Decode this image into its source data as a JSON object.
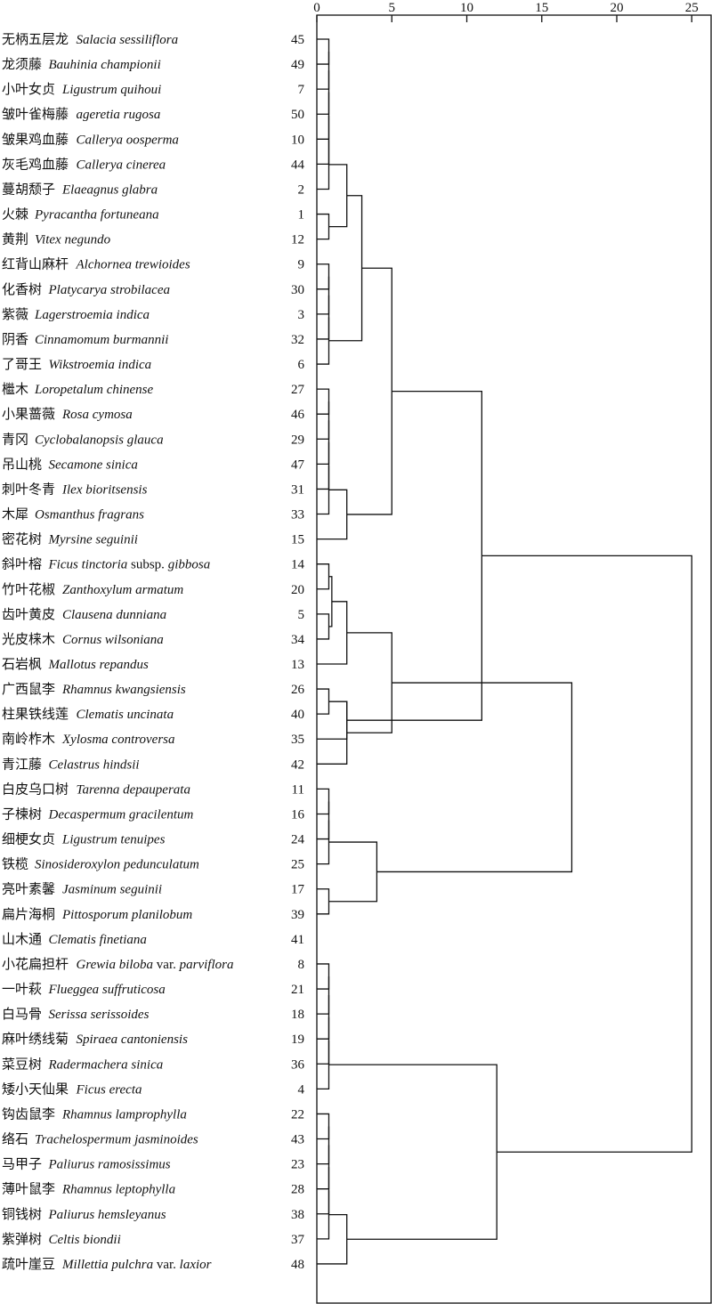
{
  "axis": {
    "ticks": [
      0,
      5,
      10,
      15,
      20,
      25
    ],
    "range": [
      0,
      26.5
    ]
  },
  "leaves": [
    {
      "zh": "无柄五层龙",
      "sci": [
        {
          "t": "Salacia sessiliflora",
          "i": true
        }
      ],
      "id": "45"
    },
    {
      "zh": "龙须藤",
      "sci": [
        {
          "t": "Bauhinia championii",
          "i": true
        }
      ],
      "id": "49"
    },
    {
      "zh": "小叶女贞",
      "sci": [
        {
          "t": "Ligustrum quihoui",
          "i": true
        }
      ],
      "id": "7"
    },
    {
      "zh": "皱叶雀梅藤",
      "sci": [
        {
          "t": "ageretia rugosa",
          "i": true
        }
      ],
      "id": "50"
    },
    {
      "zh": "皱果鸡血藤",
      "sci": [
        {
          "t": "Callerya oosperma",
          "i": true
        }
      ],
      "id": "10"
    },
    {
      "zh": "灰毛鸡血藤",
      "sci": [
        {
          "t": "Callerya cinerea",
          "i": true
        }
      ],
      "id": "44"
    },
    {
      "zh": "蔓胡颓子",
      "sci": [
        {
          "t": "Elaeagnus glabra",
          "i": true
        }
      ],
      "id": "2"
    },
    {
      "zh": "火棘",
      "sci": [
        {
          "t": "Pyracantha fortuneana",
          "i": true
        }
      ],
      "id": "1"
    },
    {
      "zh": "黄荆",
      "sci": [
        {
          "t": "Vitex negundo",
          "i": true
        }
      ],
      "id": "12"
    },
    {
      "zh": "红背山麻杆",
      "sci": [
        {
          "t": "Alchornea trewioides",
          "i": true
        }
      ],
      "id": "9"
    },
    {
      "zh": "化香树",
      "sci": [
        {
          "t": "Platycarya strobilacea",
          "i": true
        }
      ],
      "id": "30"
    },
    {
      "zh": "紫薇",
      "sci": [
        {
          "t": "Lagerstroemia indica",
          "i": true
        }
      ],
      "id": "3"
    },
    {
      "zh": "阴香",
      "sci": [
        {
          "t": "Cinnamomum burmannii",
          "i": true
        }
      ],
      "id": "32"
    },
    {
      "zh": "了哥王",
      "sci": [
        {
          "t": "Wikstroemia indica",
          "i": true
        }
      ],
      "id": "6"
    },
    {
      "zh": "檵木",
      "sci": [
        {
          "t": "Loropetalum chinense",
          "i": true
        }
      ],
      "id": "27"
    },
    {
      "zh": "小果蔷薇",
      "sci": [
        {
          "t": "Rosa cymosa",
          "i": true
        }
      ],
      "id": "46"
    },
    {
      "zh": "青冈",
      "sci": [
        {
          "t": "Cyclobalanopsis glauca",
          "i": true
        }
      ],
      "id": "29"
    },
    {
      "zh": "吊山桃",
      "sci": [
        {
          "t": "Secamone sinica",
          "i": true
        }
      ],
      "id": "47"
    },
    {
      "zh": "刺叶冬青",
      "sci": [
        {
          "t": "Ilex bioritsensis",
          "i": true
        }
      ],
      "id": "31"
    },
    {
      "zh": "木犀",
      "sci": [
        {
          "t": "Osmanthus fragrans",
          "i": true
        }
      ],
      "id": "33"
    },
    {
      "zh": "密花树",
      "sci": [
        {
          "t": "Myrsine seguinii",
          "i": true
        }
      ],
      "id": "15"
    },
    {
      "zh": "斜叶榕",
      "sci": [
        {
          "t": "Ficus tinctoria",
          "i": true
        },
        {
          "t": " subsp. ",
          "i": false
        },
        {
          "t": "gibbosa",
          "i": true
        }
      ],
      "id": "14"
    },
    {
      "zh": "竹叶花椒",
      "sci": [
        {
          "t": "Zanthoxylum armatum",
          "i": true
        }
      ],
      "id": "20"
    },
    {
      "zh": "齿叶黄皮",
      "sci": [
        {
          "t": "Clausena dunniana",
          "i": true
        }
      ],
      "id": "5"
    },
    {
      "zh": "光皮梾木",
      "sci": [
        {
          "t": "Cornus wilsoniana",
          "i": true
        }
      ],
      "id": "34"
    },
    {
      "zh": "石岩枫",
      "sci": [
        {
          "t": "Mallotus repandus",
          "i": true
        }
      ],
      "id": "13"
    },
    {
      "zh": "广西鼠李",
      "sci": [
        {
          "t": "Rhamnus kwangsiensis",
          "i": true
        }
      ],
      "id": "26"
    },
    {
      "zh": "柱果铁线莲",
      "sci": [
        {
          "t": "Clematis uncinata",
          "i": true
        }
      ],
      "id": "40"
    },
    {
      "zh": "南岭柞木",
      "sci": [
        {
          "t": "Xylosma controversa",
          "i": true
        }
      ],
      "id": "35"
    },
    {
      "zh": "青江藤",
      "sci": [
        {
          "t": "Celastrus hindsii",
          "i": true
        }
      ],
      "id": "42"
    },
    {
      "zh": "白皮乌口树",
      "sci": [
        {
          "t": "Tarenna depauperata",
          "i": true
        }
      ],
      "id": "11"
    },
    {
      "zh": "子楝树",
      "sci": [
        {
          "t": "Decaspermum gracilentum",
          "i": true
        }
      ],
      "id": "16"
    },
    {
      "zh": "细梗女贞",
      "sci": [
        {
          "t": "Ligustrum tenuipes",
          "i": true
        }
      ],
      "id": "24"
    },
    {
      "zh": "铁榄",
      "sci": [
        {
          "t": "Sinosideroxylon pedunculatum",
          "i": true
        }
      ],
      "id": "25"
    },
    {
      "zh": "亮叶素馨",
      "sci": [
        {
          "t": "Jasminum seguinii",
          "i": true
        }
      ],
      "id": "17"
    },
    {
      "zh": "扁片海桐",
      "sci": [
        {
          "t": "Pittosporum planilobum",
          "i": true
        }
      ],
      "id": "39"
    },
    {
      "zh": "山木通",
      "sci": [
        {
          "t": "Clematis finetiana",
          "i": true
        }
      ],
      "id": "41"
    },
    {
      "zh": "小花扁担杆",
      "sci": [
        {
          "t": "Grewia biloba",
          "i": true
        },
        {
          "t": " var. ",
          "i": false
        },
        {
          "t": "parviflora",
          "i": true
        }
      ],
      "id": "8"
    },
    {
      "zh": "一叶萩",
      "sci": [
        {
          "t": "Flueggea suffruticosa",
          "i": true
        }
      ],
      "id": "21"
    },
    {
      "zh": "白马骨",
      "sci": [
        {
          "t": "Serissa serissoides",
          "i": true
        }
      ],
      "id": "18"
    },
    {
      "zh": "麻叶绣线菊",
      "sci": [
        {
          "t": "Spiraea cantoniensis",
          "i": true
        }
      ],
      "id": "19"
    },
    {
      "zh": "菜豆树",
      "sci": [
        {
          "t": "Radermachera sinica",
          "i": true
        }
      ],
      "id": "36"
    },
    {
      "zh": "矮小天仙果",
      "sci": [
        {
          "t": "Ficus erecta",
          "i": true
        }
      ],
      "id": "4"
    },
    {
      "zh": "钩齿鼠李",
      "sci": [
        {
          "t": "Rhamnus lamprophylla",
          "i": true
        }
      ],
      "id": "22"
    },
    {
      "zh": "络石",
      "sci": [
        {
          "t": "Trachelospermum jasminoides",
          "i": true
        }
      ],
      "id": "43"
    },
    {
      "zh": "马甲子",
      "sci": [
        {
          "t": "Paliurus ramosissimus",
          "i": true
        }
      ],
      "id": "23"
    },
    {
      "zh": "薄叶鼠李",
      "sci": [
        {
          "t": "Rhamnus leptophylla",
          "i": true
        }
      ],
      "id": "28"
    },
    {
      "zh": "铜钱树",
      "sci": [
        {
          "t": "Paliurus hemsleyanus",
          "i": true
        }
      ],
      "id": "38"
    },
    {
      "zh": "紫弹树",
      "sci": [
        {
          "t": "Celtis biondii",
          "i": true
        }
      ],
      "id": "37"
    },
    {
      "zh": "疏叶崖豆",
      "sci": [
        {
          "t": "Millettia pulchra",
          "i": true
        },
        {
          "t": " var. ",
          "i": false
        },
        {
          "t": "laxior",
          "i": true
        }
      ],
      "id": "48"
    }
  ],
  "merges": [
    {
      "a": 0,
      "b": 1,
      "h": 0.8
    },
    {
      "a": 50,
      "b": 2,
      "h": 0.8
    },
    {
      "a": 51,
      "b": 3,
      "h": 0.8
    },
    {
      "a": 52,
      "b": 4,
      "h": 0.8
    },
    {
      "a": 53,
      "b": 5,
      "h": 0.8
    },
    {
      "a": 54,
      "b": 6,
      "h": 0.8
    },
    {
      "a": 7,
      "b": 8,
      "h": 0.8
    },
    {
      "a": 9,
      "b": 10,
      "h": 0.8
    },
    {
      "a": 57,
      "b": 11,
      "h": 0.8
    },
    {
      "a": 58,
      "b": 12,
      "h": 0.8
    },
    {
      "a": 59,
      "b": 13,
      "h": 0.8
    },
    {
      "a": 14,
      "b": 15,
      "h": 0.8
    },
    {
      "a": 61,
      "b": 16,
      "h": 0.8
    },
    {
      "a": 62,
      "b": 17,
      "h": 0.8
    },
    {
      "a": 63,
      "b": 18,
      "h": 0.8
    },
    {
      "a": 64,
      "b": 19,
      "h": 0.8
    },
    {
      "a": 21,
      "b": 22,
      "h": 0.8
    },
    {
      "a": 23,
      "b": 24,
      "h": 0.8
    },
    {
      "a": 26,
      "b": 27,
      "h": 0.8
    },
    {
      "a": 30,
      "b": 31,
      "h": 0.8
    },
    {
      "a": 69,
      "b": 32,
      "h": 0.8
    },
    {
      "a": 70,
      "b": 33,
      "h": 0.8
    },
    {
      "a": 34,
      "b": 35,
      "h": 0.8
    },
    {
      "a": 37,
      "b": 38,
      "h": 0.8
    },
    {
      "a": 73,
      "b": 39,
      "h": 0.8
    },
    {
      "a": 74,
      "b": 40,
      "h": 0.8
    },
    {
      "a": 75,
      "b": 41,
      "h": 0.8
    },
    {
      "a": 76,
      "b": 42,
      "h": 0.8
    },
    {
      "a": 43,
      "b": 44,
      "h": 0.8
    },
    {
      "a": 78,
      "b": 45,
      "h": 0.8
    },
    {
      "a": 79,
      "b": 46,
      "h": 0.8
    },
    {
      "a": 80,
      "b": 47,
      "h": 0.8
    },
    {
      "a": 81,
      "b": 48,
      "h": 0.8
    },
    {
      "a": 66,
      "b": 67,
      "h": 1.0
    },
    {
      "a": 55,
      "b": 56,
      "h": 2.0
    },
    {
      "a": 65,
      "b": 20,
      "h": 2.0
    },
    {
      "a": 83,
      "b": 25,
      "h": 2.0
    },
    {
      "a": 68,
      "b": 28,
      "h": 2.0
    },
    {
      "a": 68,
      "b": 29,
      "h": 2.0
    },
    {
      "a": 82,
      "b": 49,
      "h": 2.0
    },
    {
      "a": 84,
      "b": 60,
      "h": 3.0
    },
    {
      "a": 71,
      "b": 72,
      "h": 4.0
    },
    {
      "a": 90,
      "b": 85,
      "h": 5.0
    },
    {
      "a": 86,
      "b": 88,
      "h": 5.0
    },
    {
      "a": 87,
      "b": 92,
      "h": 11.0
    },
    {
      "a": 77,
      "b": 89,
      "h": 12.0
    },
    {
      "a": 93,
      "b": 91,
      "h": 17.0
    },
    {
      "a": 95,
      "b": 94,
      "h": 25.0
    }
  ]
}
